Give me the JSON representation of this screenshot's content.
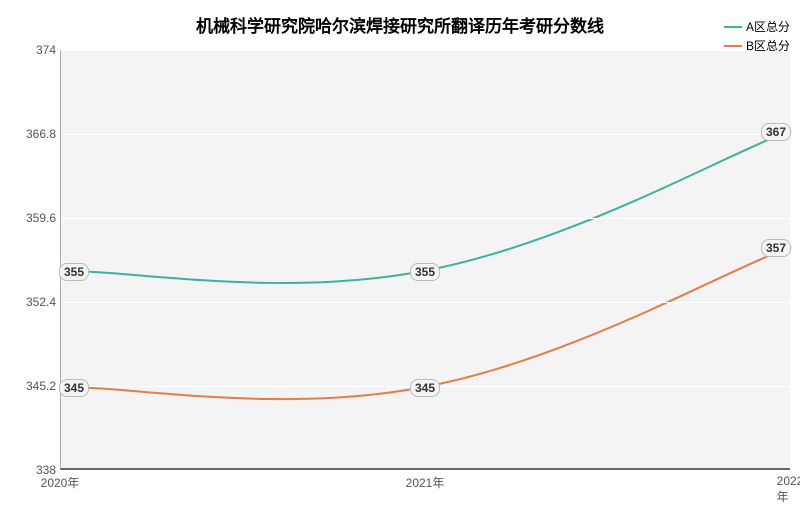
{
  "chart": {
    "type": "line",
    "title": "机械科学研究院哈尔滨焊接研究所翻译历年考研分数线",
    "title_fontsize": 17,
    "background_color": "#ffffff",
    "plot_background_color": "#f4f4f4",
    "grid_color": "#ffffff",
    "axis_color": "#666666",
    "ylim": [
      338,
      374
    ],
    "yticks": [
      338,
      345.2,
      352.4,
      359.6,
      366.8,
      374
    ],
    "ytick_labels": [
      "338",
      "345.2",
      "352.4",
      "359.6",
      "366.8",
      "374"
    ],
    "x_categories": [
      "2020年",
      "2021年",
      "2022年"
    ],
    "series": [
      {
        "name": "A区总分",
        "color": "#3bb39e",
        "values": [
          355,
          355,
          367
        ],
        "labels": [
          "355",
          "355",
          "367"
        ],
        "line_width": 2
      },
      {
        "name": "B区总分",
        "color": "#e87c46",
        "values": [
          345,
          345,
          357
        ],
        "labels": [
          "345",
          "345",
          "357"
        ],
        "line_width": 2
      }
    ],
    "label_fontsize": 12,
    "tick_fontsize": 12,
    "legend_position": "top-right"
  }
}
